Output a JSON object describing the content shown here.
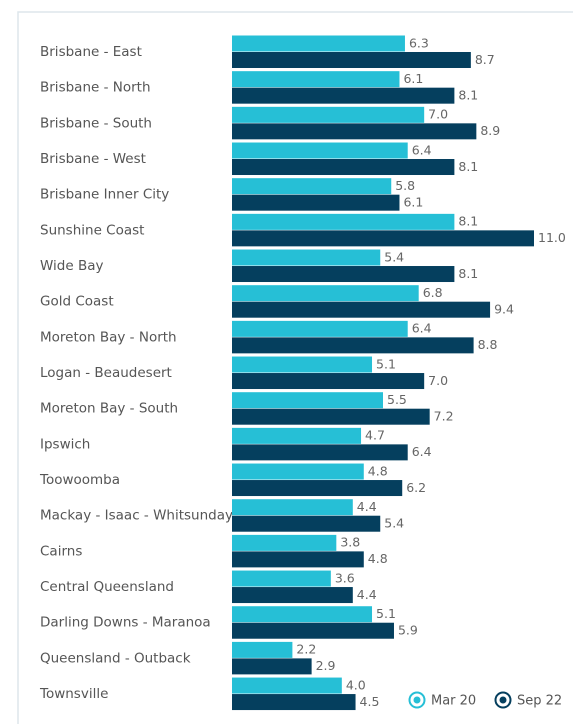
{
  "chart_data": {
    "type": "hbar",
    "categories": [
      "Brisbane - East",
      "Brisbane - North",
      "Brisbane - South",
      "Brisbane - West",
      "Brisbane Inner City",
      "Sunshine Coast",
      "Wide Bay",
      "Gold Coast",
      "Moreton Bay - North",
      "Logan - Beaudesert",
      "Moreton Bay - South",
      "Ipswich",
      "Toowoomba",
      "Mackay - Isaac - Whitsunday",
      "Cairns",
      "Central Queensland",
      "Darling Downs - Maranoa",
      "Queensland - Outback",
      "Townsville"
    ],
    "series": [
      {
        "name": "Mar 20",
        "color": "#26bfd6",
        "values": [
          6.3,
          6.1,
          7.0,
          6.4,
          5.8,
          8.1,
          5.4,
          6.8,
          6.4,
          5.1,
          5.5,
          4.7,
          4.8,
          4.4,
          3.8,
          3.6,
          5.1,
          2.2,
          4.0
        ],
        "value_labels": [
          "6.3",
          "6.1",
          "7.0",
          "6.4",
          "5.8",
          "8.1",
          "5.4",
          "6.8",
          "6.4",
          "5.1",
          "5.5",
          "4.7",
          "4.8",
          "4.4",
          "3.8",
          "3.6",
          "5.1",
          "2.2",
          "4.0"
        ]
      },
      {
        "name": "Sep 22",
        "color": "#053f5e",
        "values": [
          8.7,
          8.1,
          8.9,
          8.1,
          6.1,
          11.0,
          8.1,
          9.4,
          8.8,
          7.0,
          7.2,
          6.4,
          6.2,
          5.4,
          4.8,
          4.4,
          5.9,
          2.9,
          4.5
        ],
        "value_labels": [
          "8.7",
          "8.1",
          "8.9",
          "8.1",
          "6.1",
          "11.0",
          "8.1",
          "9.4",
          "8.8",
          "7.0",
          "7.2",
          "6.4",
          "6.2",
          "5.4",
          "4.8",
          "4.4",
          "5.9",
          "2.9",
          "4.5"
        ]
      }
    ],
    "legend": "bottom-right"
  }
}
